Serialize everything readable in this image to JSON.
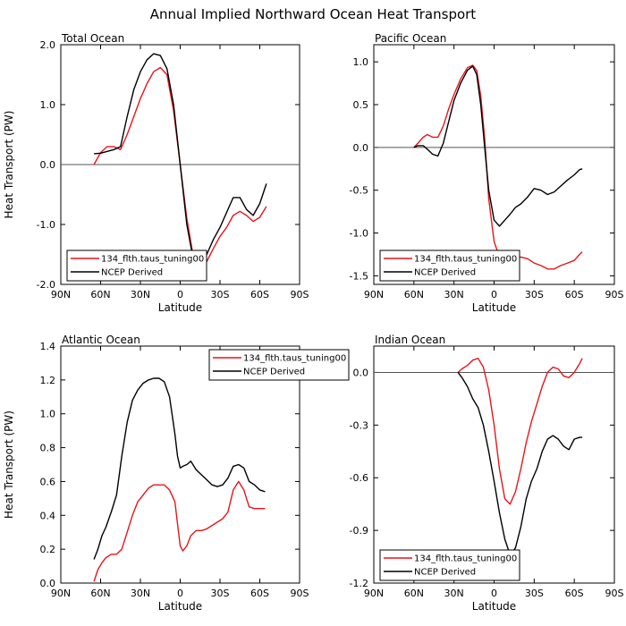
{
  "title": "Annual Implied Northward Ocean Heat Transport",
  "colors": {
    "model": "#e8141a",
    "ncep": "#000000",
    "zero_line": "#555555"
  },
  "chart_data": [
    {
      "type": "line",
      "title": "Total Ocean",
      "xlabel": "Latitude",
      "ylabel": "Heat Transport (PW)",
      "x_ticks": [
        90,
        60,
        30,
        0,
        -30,
        -60,
        -90
      ],
      "x_tick_labels": [
        "90N",
        "60N",
        "30N",
        "0",
        "30S",
        "60S",
        "90S"
      ],
      "xlim": [
        90,
        -90
      ],
      "ylim": [
        -2.0,
        2.0
      ],
      "y_ticks": [
        -2.0,
        -1.0,
        0.0,
        1.0,
        2.0
      ],
      "y_tick_labels": [
        "-2.0",
        "-1.0",
        "0.0",
        "1.0",
        "2.0"
      ],
      "zero_line": true,
      "legend_placement": "bottom-left",
      "series": [
        {
          "name": "134_flth.taus_tuning00",
          "color": "#e8141a",
          "x": [
            65,
            60,
            55,
            50,
            45,
            40,
            35,
            30,
            25,
            20,
            15,
            10,
            5,
            0,
            -5,
            -10,
            -15,
            -20,
            -25,
            -30,
            -35,
            -40,
            -45,
            -50,
            -55,
            -60,
            -65
          ],
          "y": [
            0.0,
            0.2,
            0.3,
            0.3,
            0.25,
            0.5,
            0.8,
            1.1,
            1.35,
            1.55,
            1.62,
            1.5,
            0.9,
            0.0,
            -0.9,
            -1.55,
            -1.72,
            -1.62,
            -1.4,
            -1.2,
            -1.05,
            -0.85,
            -0.78,
            -0.85,
            -0.95,
            -0.88,
            -0.7
          ]
        },
        {
          "name": "NCEP Derived",
          "color": "#000000",
          "x": [
            65,
            60,
            55,
            50,
            45,
            40,
            35,
            30,
            25,
            20,
            15,
            10,
            5,
            0,
            -5,
            -10,
            -15,
            -20,
            -25,
            -30,
            -35,
            -40,
            -45,
            -50,
            -55,
            -60,
            -65
          ],
          "y": [
            0.18,
            0.19,
            0.22,
            0.25,
            0.3,
            0.8,
            1.25,
            1.55,
            1.75,
            1.85,
            1.82,
            1.6,
            1.0,
            0.0,
            -1.0,
            -1.6,
            -1.65,
            -1.5,
            -1.25,
            -1.05,
            -0.8,
            -0.55,
            -0.55,
            -0.75,
            -0.85,
            -0.65,
            -0.32
          ]
        }
      ]
    },
    {
      "type": "line",
      "title": "Pacific Ocean",
      "xlabel": "Latitude",
      "ylabel": "",
      "x_ticks": [
        90,
        60,
        30,
        0,
        -30,
        -60,
        -90
      ],
      "x_tick_labels": [
        "90N",
        "60N",
        "30N",
        "0",
        "30S",
        "60S",
        "90S"
      ],
      "xlim": [
        90,
        -90
      ],
      "ylim": [
        -1.6,
        1.2
      ],
      "y_ticks": [
        -1.5,
        -1.0,
        -0.5,
        0.0,
        0.5,
        1.0
      ],
      "y_tick_labels": [
        "-1.5",
        "-1.0",
        "-0.5",
        "0.0",
        "0.5",
        "1.0"
      ],
      "zero_line": true,
      "legend_placement": "bottom-left",
      "series": [
        {
          "name": "134_flth.taus_tuning00",
          "color": "#e8141a",
          "x": [
            60,
            57,
            53,
            50,
            46,
            42,
            38,
            34,
            30,
            25,
            20,
            16,
            13,
            10,
            7,
            4,
            0,
            -4,
            -8,
            -12,
            -16,
            -20,
            -25,
            -30,
            -35,
            -40,
            -45,
            -50,
            -55,
            -60,
            -64,
            -66
          ],
          "y": [
            0.0,
            0.05,
            0.12,
            0.15,
            0.12,
            0.12,
            0.25,
            0.45,
            0.62,
            0.8,
            0.93,
            0.96,
            0.9,
            0.6,
            0.1,
            -0.6,
            -1.1,
            -1.28,
            -1.35,
            -1.35,
            -1.3,
            -1.28,
            -1.3,
            -1.35,
            -1.38,
            -1.42,
            -1.42,
            -1.38,
            -1.35,
            -1.32,
            -1.25,
            -1.22
          ]
        },
        {
          "name": "NCEP Derived",
          "color": "#000000",
          "x": [
            60,
            57,
            53,
            50,
            46,
            42,
            38,
            34,
            30,
            25,
            20,
            16,
            13,
            10,
            7,
            4,
            0,
            -4,
            -8,
            -12,
            -16,
            -20,
            -25,
            -30,
            -35,
            -40,
            -45,
            -50,
            -55,
            -60,
            -64,
            -66
          ],
          "y": [
            0.0,
            0.02,
            0.02,
            -0.02,
            -0.08,
            -0.1,
            0.05,
            0.3,
            0.55,
            0.75,
            0.9,
            0.95,
            0.85,
            0.5,
            0.0,
            -0.5,
            -0.85,
            -0.92,
            -0.85,
            -0.78,
            -0.7,
            -0.66,
            -0.58,
            -0.48,
            -0.5,
            -0.55,
            -0.52,
            -0.45,
            -0.38,
            -0.32,
            -0.26,
            -0.25
          ]
        }
      ]
    },
    {
      "type": "line",
      "title": "Atlantic Ocean",
      "xlabel": "Latitude",
      "ylabel": "Heat Transport (PW)",
      "x_ticks": [
        90,
        60,
        30,
        0,
        -30,
        -60,
        -90
      ],
      "x_tick_labels": [
        "90N",
        "60N",
        "30N",
        "0",
        "30S",
        "60S",
        "90S"
      ],
      "xlim": [
        90,
        -90
      ],
      "ylim": [
        0.0,
        1.4
      ],
      "y_ticks": [
        0.0,
        0.2,
        0.4,
        0.6,
        0.8,
        1.0,
        1.2,
        1.4
      ],
      "y_tick_labels": [
        "0.0",
        "0.2",
        "0.4",
        "0.6",
        "0.8",
        "1.0",
        "1.2",
        "1.4"
      ],
      "zero_line": false,
      "legend_placement": "top-right",
      "series": [
        {
          "name": "134_flth.taus_tuning00",
          "color": "#e8141a",
          "x": [
            65,
            62,
            59,
            56,
            52,
            48,
            44,
            40,
            36,
            32,
            28,
            24,
            20,
            16,
            12,
            8,
            4,
            2,
            0,
            -2,
            -5,
            -8,
            -12,
            -16,
            -20,
            -24,
            -28,
            -32,
            -36,
            -40,
            -44,
            -48,
            -52,
            -56,
            -60,
            -64
          ],
          "y": [
            0.01,
            0.08,
            0.12,
            0.15,
            0.17,
            0.17,
            0.2,
            0.3,
            0.4,
            0.48,
            0.52,
            0.56,
            0.58,
            0.58,
            0.58,
            0.55,
            0.48,
            0.35,
            0.22,
            0.19,
            0.22,
            0.28,
            0.31,
            0.31,
            0.32,
            0.34,
            0.36,
            0.38,
            0.42,
            0.55,
            0.6,
            0.55,
            0.45,
            0.44,
            0.44,
            0.44
          ]
        },
        {
          "name": "NCEP Derived",
          "color": "#000000",
          "x": [
            65,
            62,
            59,
            56,
            52,
            48,
            44,
            40,
            36,
            32,
            28,
            24,
            20,
            16,
            12,
            8,
            4,
            2,
            0,
            -2,
            -5,
            -8,
            -12,
            -16,
            -20,
            -24,
            -28,
            -32,
            -36,
            -40,
            -44,
            -48,
            -52,
            -56,
            -60,
            -64
          ],
          "y": [
            0.14,
            0.2,
            0.28,
            0.33,
            0.42,
            0.52,
            0.75,
            0.95,
            1.08,
            1.14,
            1.18,
            1.2,
            1.21,
            1.21,
            1.19,
            1.1,
            0.88,
            0.75,
            0.68,
            0.69,
            0.7,
            0.72,
            0.67,
            0.64,
            0.61,
            0.58,
            0.57,
            0.58,
            0.62,
            0.69,
            0.7,
            0.68,
            0.6,
            0.58,
            0.55,
            0.54
          ]
        }
      ]
    },
    {
      "type": "line",
      "title": "Indian Ocean",
      "xlabel": "Latitude",
      "ylabel": "",
      "x_ticks": [
        90,
        60,
        30,
        0,
        -30,
        -60,
        -90
      ],
      "x_tick_labels": [
        "90N",
        "60N",
        "30N",
        "0",
        "30S",
        "60S",
        "90S"
      ],
      "xlim": [
        90,
        -90
      ],
      "ylim": [
        -1.2,
        0.15
      ],
      "y_ticks": [
        -1.2,
        -0.9,
        -0.6,
        -0.3,
        0.0
      ],
      "y_tick_labels": [
        "-1.2",
        "-0.9",
        "-0.6",
        "-0.3",
        "0.0"
      ],
      "zero_line": true,
      "legend_placement": "bottom-left",
      "series": [
        {
          "name": "134_flth.taus_tuning00",
          "color": "#e8141a",
          "x": [
            27,
            24,
            20,
            16,
            12,
            8,
            4,
            0,
            -4,
            -8,
            -12,
            -16,
            -20,
            -24,
            -28,
            -32,
            -36,
            -40,
            -44,
            -48,
            -52,
            -56,
            -60,
            -64,
            -66
          ],
          "y": [
            0.0,
            0.02,
            0.04,
            0.07,
            0.08,
            0.03,
            -0.1,
            -0.3,
            -0.55,
            -0.72,
            -0.75,
            -0.68,
            -0.55,
            -0.4,
            -0.28,
            -0.18,
            -0.08,
            0.0,
            0.03,
            0.02,
            -0.02,
            -0.03,
            0.0,
            0.05,
            0.08
          ]
        },
        {
          "name": "NCEP Derived",
          "color": "#000000",
          "x": [
            27,
            24,
            20,
            16,
            12,
            8,
            4,
            0,
            -4,
            -8,
            -12,
            -16,
            -20,
            -24,
            -28,
            -32,
            -36,
            -40,
            -44,
            -48,
            -52,
            -56,
            -60,
            -64,
            -66
          ],
          "y": [
            0.0,
            -0.03,
            -0.08,
            -0.15,
            -0.2,
            -0.3,
            -0.45,
            -0.62,
            -0.8,
            -0.95,
            -1.04,
            -1.0,
            -0.88,
            -0.72,
            -0.62,
            -0.55,
            -0.45,
            -0.38,
            -0.36,
            -0.38,
            -0.42,
            -0.44,
            -0.38,
            -0.37,
            -0.37
          ]
        }
      ]
    }
  ]
}
